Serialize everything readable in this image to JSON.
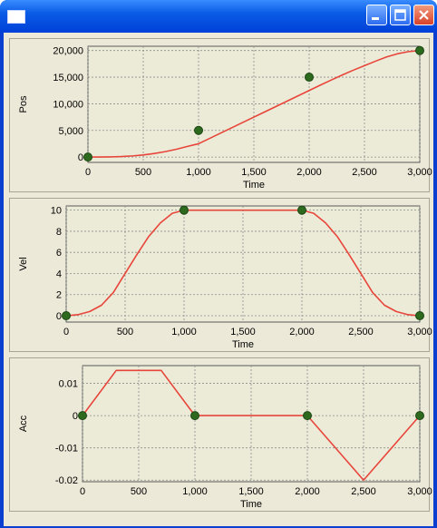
{
  "window": {
    "title": "",
    "buttons": [
      "minimize",
      "maximize",
      "close"
    ]
  },
  "colors": {
    "curve": "#e8453a",
    "marker": "#2d6a1e",
    "plot_bg": "#ecebd8",
    "frame": "#ece9d8"
  },
  "chart_data": [
    {
      "type": "line",
      "xlabel": "Time",
      "ylabel": "Pos",
      "xlim": [
        0,
        3000
      ],
      "ylim": [
        -1000,
        20800
      ],
      "xticks": [
        0,
        500,
        1000,
        1500,
        2000,
        2500,
        3000
      ],
      "xtick_labels": [
        "0",
        "500",
        "1,000",
        "1,500",
        "2,000",
        "2,500",
        "3,000"
      ],
      "yticks": [
        0,
        5000,
        10000,
        15000,
        20000
      ],
      "ytick_labels": [
        "0",
        "5,000",
        "10,000",
        "15,000",
        "20,000"
      ],
      "grid": true,
      "series": [
        {
          "values_x": [
            0,
            100,
            200,
            300,
            400,
            500,
            600,
            700,
            800,
            900,
            1000,
            1200,
            1400,
            1600,
            1800,
            2000,
            2100,
            2200,
            2300,
            2400,
            2500,
            2600,
            2700,
            2800,
            2900,
            3000
          ],
          "values_y": [
            0,
            3,
            27,
            93,
            213,
            400,
            667,
            1020,
            1467,
            2007,
            2500,
            4500,
            6500,
            8500,
            10500,
            12500,
            13493,
            14467,
            15413,
            16320,
            17167,
            18000,
            18800,
            19400,
            19800,
            20000
          ]
        }
      ],
      "markers": [
        {
          "x": 0,
          "y": 0
        },
        {
          "x": 1000,
          "y": 5000
        },
        {
          "x": 2000,
          "y": 15000
        },
        {
          "x": 3000,
          "y": 20000
        }
      ]
    },
    {
      "type": "line",
      "xlabel": "Time",
      "ylabel": "Vel",
      "xlim": [
        0,
        3000
      ],
      "ylim": [
        -0.6,
        10.4
      ],
      "xticks": [
        0,
        500,
        1000,
        1500,
        2000,
        2500,
        3000
      ],
      "xtick_labels": [
        "0",
        "500",
        "1,000",
        "1,500",
        "2,000",
        "2,500",
        "3,000"
      ],
      "yticks": [
        0,
        2,
        4,
        6,
        8,
        10
      ],
      "ytick_labels": [
        "0",
        "2",
        "4",
        "6",
        "8",
        "10"
      ],
      "grid": true,
      "series": [
        {
          "values_x": [
            0,
            100,
            200,
            300,
            400,
            500,
            600,
            700,
            800,
            900,
            1000,
            1500,
            2000,
            2100,
            2200,
            2300,
            2400,
            2500,
            2600,
            2700,
            2800,
            2900,
            3000
          ],
          "values_y": [
            0,
            0.1,
            0.4,
            1.0,
            2.2,
            4.0,
            5.8,
            7.5,
            8.8,
            9.7,
            10,
            10,
            10,
            9.7,
            8.8,
            7.5,
            5.8,
            4.0,
            2.2,
            1.0,
            0.4,
            0.1,
            0
          ]
        }
      ],
      "markers": [
        {
          "x": 0,
          "y": 0
        },
        {
          "x": 1000,
          "y": 10
        },
        {
          "x": 2000,
          "y": 10
        },
        {
          "x": 3000,
          "y": 0
        }
      ]
    },
    {
      "type": "line",
      "xlabel": "Time",
      "ylabel": "Acc",
      "xlim": [
        0,
        3000
      ],
      "ylim": [
        -0.0205,
        0.0155
      ],
      "xticks": [
        0,
        500,
        1000,
        1500,
        2000,
        2500,
        3000
      ],
      "xtick_labels": [
        "0",
        "500",
        "1,000",
        "1,500",
        "2,000",
        "2,500",
        "3,000"
      ],
      "yticks": [
        0.01,
        0,
        -0.01,
        -0.02
      ],
      "ytick_labels": [
        "0.01",
        "0",
        "-0.01",
        "-0.02"
      ],
      "grid": true,
      "series": [
        {
          "values_x": [
            0,
            300,
            700,
            1000,
            2000,
            2500,
            3000
          ],
          "values_y": [
            0,
            0.014,
            0.014,
            0,
            0,
            -0.02,
            0
          ]
        }
      ],
      "markers": [
        {
          "x": 0,
          "y": 0
        },
        {
          "x": 1000,
          "y": 0
        },
        {
          "x": 2000,
          "y": 0
        },
        {
          "x": 3000,
          "y": 0
        }
      ]
    }
  ]
}
